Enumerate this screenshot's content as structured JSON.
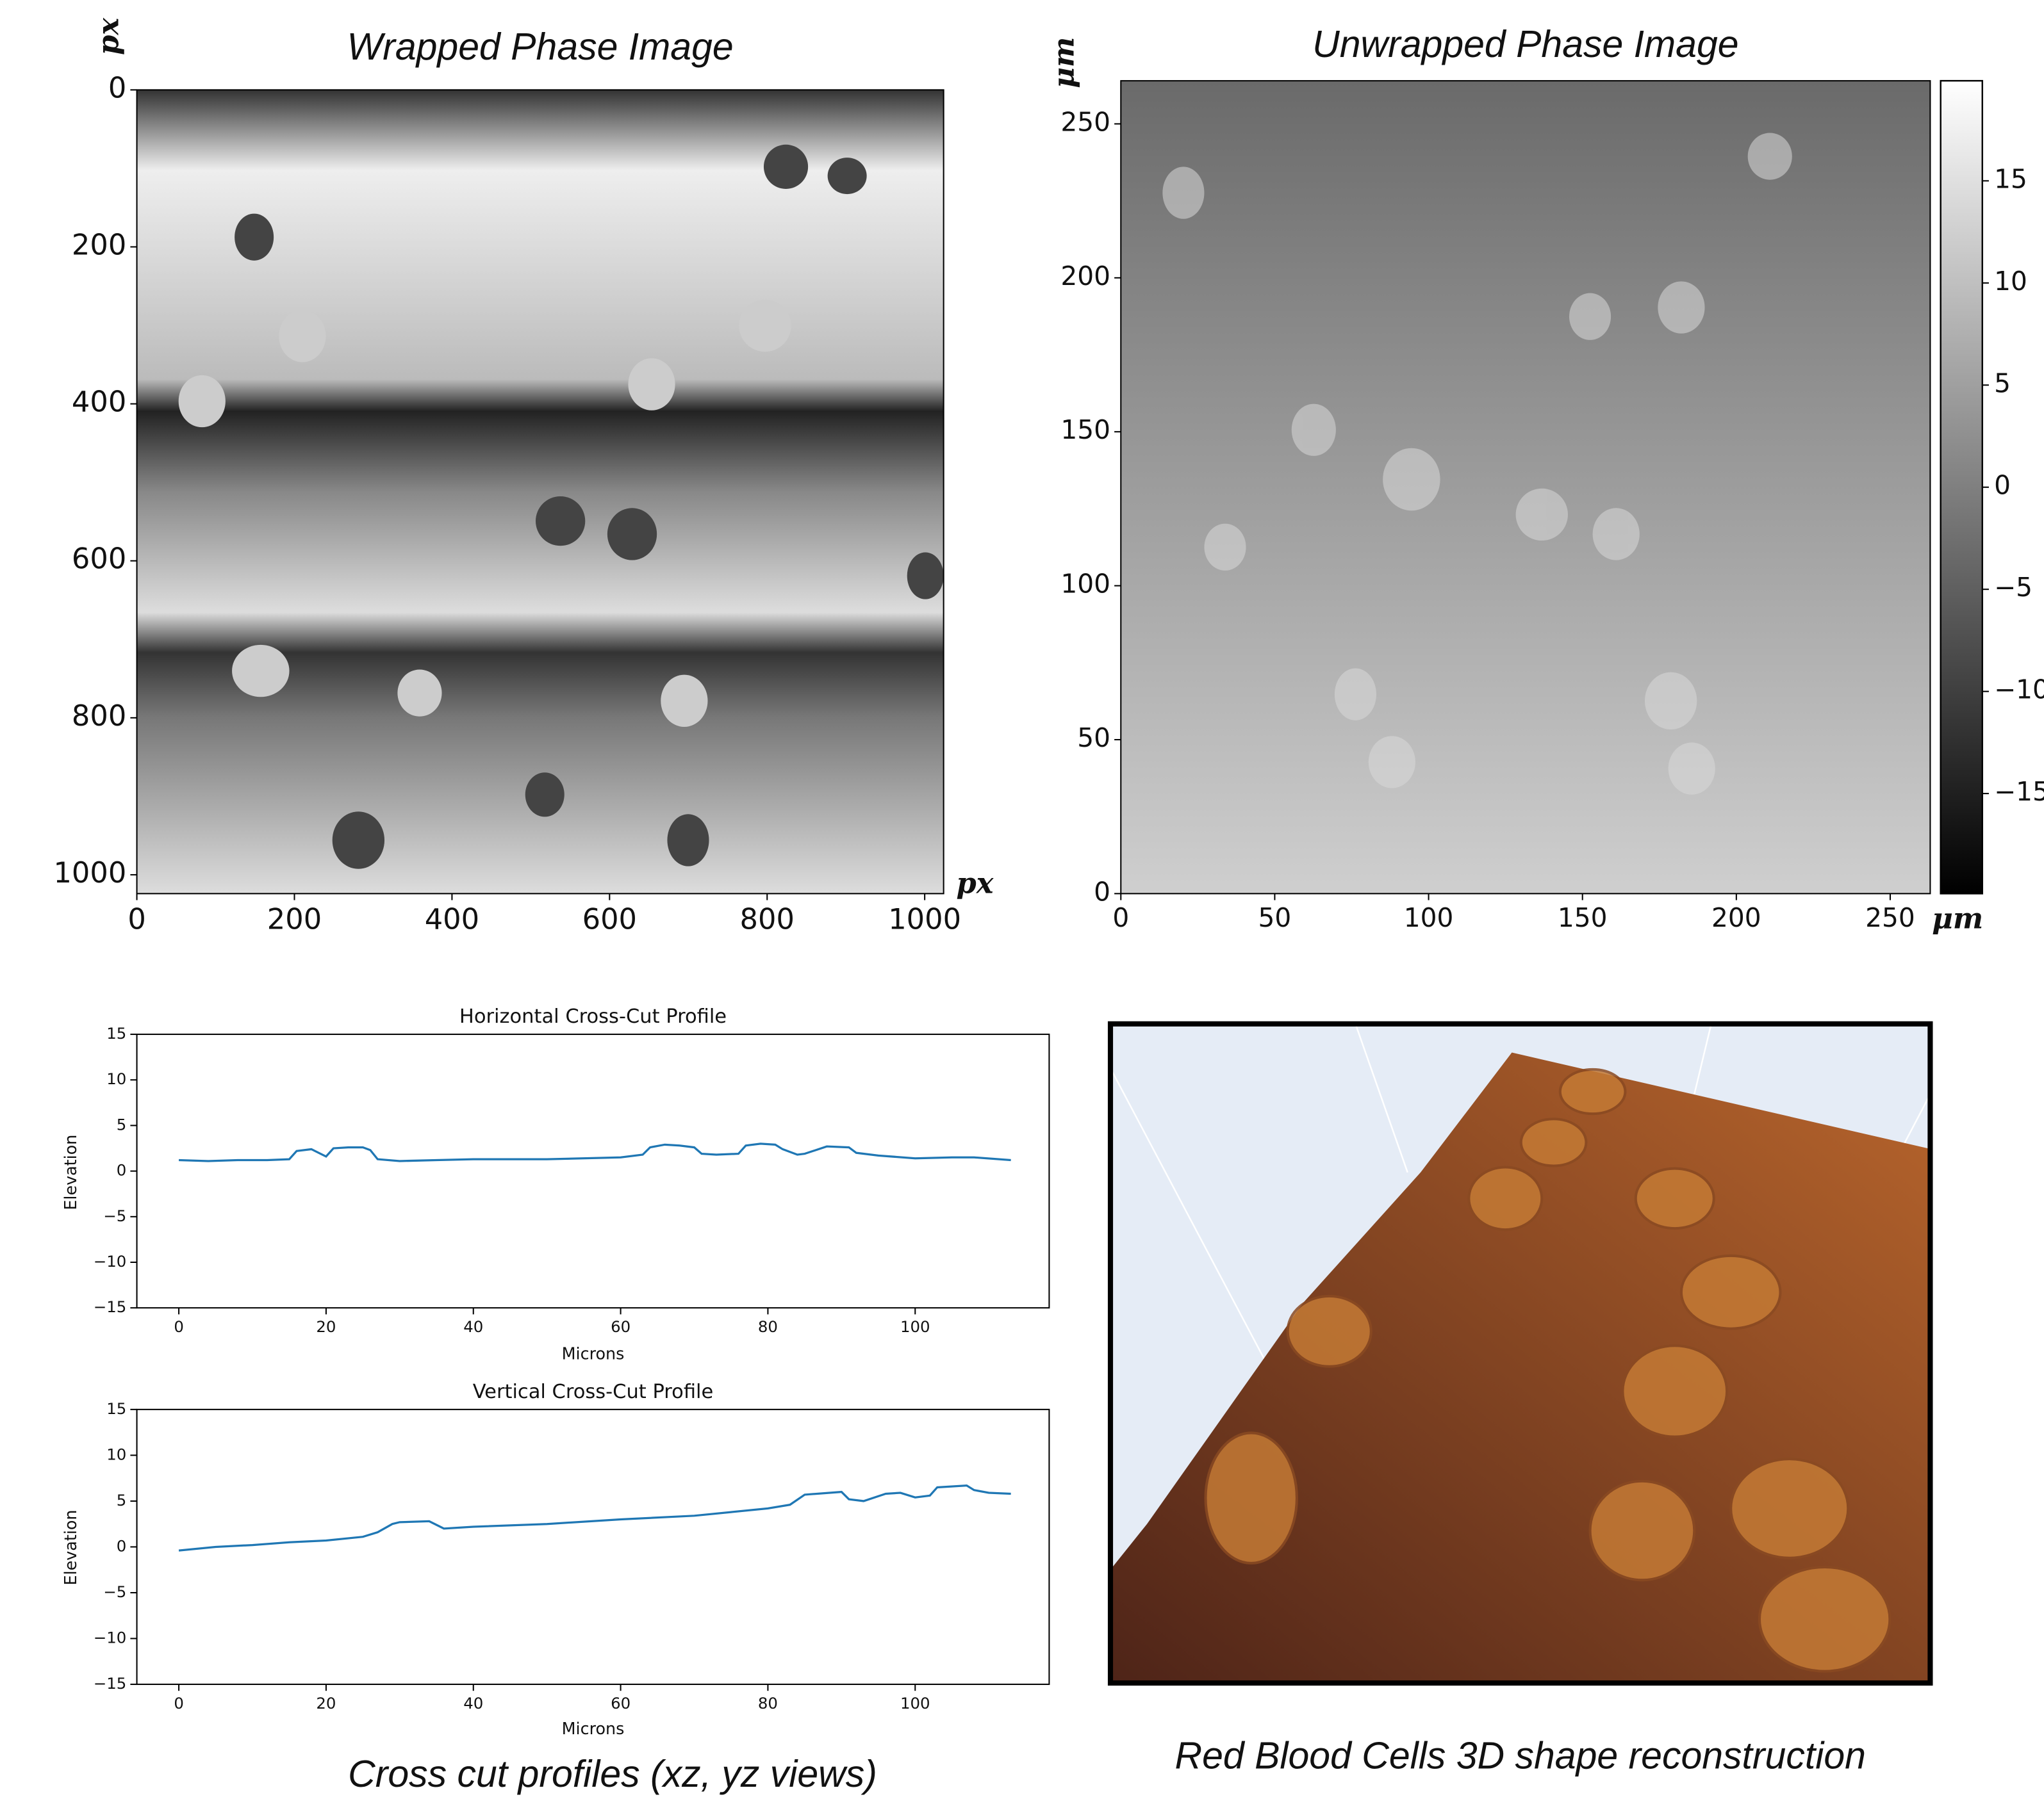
{
  "chart_data": [
    {
      "type": "image",
      "title": "Wrapped Phase Image",
      "xlabel": "px",
      "ylabel": "px",
      "cmap": "gray",
      "xlim": [
        0,
        1024
      ],
      "ylim": [
        1024,
        0
      ],
      "xticks": [
        0,
        200,
        400,
        600,
        800,
        1000
      ],
      "yticks": [
        0,
        200,
        400,
        600,
        800,
        1000
      ]
    },
    {
      "type": "image",
      "title": "Unwrapped Phase Image",
      "xlabel": "μm",
      "ylabel": "μm",
      "cmap": "gray",
      "xlim": [
        0,
        263
      ],
      "ylim": [
        0,
        264
      ],
      "xticks": [
        0,
        50,
        100,
        150,
        200,
        250
      ],
      "yticks": [
        0,
        50,
        100,
        150,
        200,
        250
      ],
      "clim": [
        -19.9,
        19.9
      ],
      "cticks": [
        15,
        10,
        5,
        0,
        {
          "value": -5,
          "label": "−5"
        },
        {
          "value": -10,
          "label": "−10"
        },
        {
          "value": -15,
          "label": "−15"
        }
      ]
    },
    {
      "type": "line",
      "title": "Horizontal Cross-Cut Profile",
      "xlabel": "Microns",
      "ylabel": "Elevation",
      "color": "#1f77b4",
      "x": [
        0,
        4,
        8,
        12,
        15,
        16,
        18,
        19,
        20,
        21,
        23,
        25,
        26,
        27,
        30,
        35,
        40,
        50,
        60,
        63,
        64,
        66,
        68,
        70,
        71,
        73,
        76,
        77,
        79,
        81,
        82,
        84,
        85,
        88,
        91,
        92,
        95,
        100,
        105,
        108,
        113
      ],
      "values": [
        1.2,
        1.1,
        1.2,
        1.2,
        1.3,
        2.2,
        2.4,
        2.0,
        1.6,
        2.5,
        2.6,
        2.6,
        2.3,
        1.3,
        1.1,
        1.2,
        1.3,
        1.3,
        1.5,
        1.8,
        2.6,
        2.9,
        2.8,
        2.6,
        1.9,
        1.8,
        1.9,
        2.8,
        3.0,
        2.9,
        2.4,
        1.8,
        1.9,
        2.7,
        2.6,
        2.0,
        1.7,
        1.4,
        1.5,
        1.5,
        1.2
      ],
      "xlim": [
        -5.7,
        118.2
      ],
      "ylim": [
        -15,
        15
      ],
      "xticks": [
        0,
        20,
        40,
        60,
        80,
        100
      ],
      "yticks": [
        {
          "value": -15,
          "label": "−15"
        },
        {
          "value": -10,
          "label": "−10"
        },
        {
          "value": -5,
          "label": "−5"
        },
        0,
        5,
        10,
        15
      ]
    },
    {
      "type": "line",
      "title": "Vertical Cross-Cut Profile",
      "xlabel": "Microns",
      "ylabel": "Elevation",
      "color": "#1f77b4",
      "x": [
        0,
        5,
        10,
        15,
        20,
        25,
        27,
        29,
        30,
        34,
        35,
        36,
        40,
        50,
        60,
        70,
        75,
        80,
        83,
        85,
        90,
        91,
        93,
        96,
        98,
        100,
        102,
        103,
        107,
        108,
        110,
        113
      ],
      "values": [
        -0.4,
        0,
        0.2,
        0.5,
        0.7,
        1.1,
        1.6,
        2.5,
        2.7,
        2.8,
        2.4,
        2.0,
        2.2,
        2.5,
        3.0,
        3.4,
        3.8,
        4.2,
        4.6,
        5.7,
        6.0,
        5.2,
        5.0,
        5.8,
        5.9,
        5.4,
        5.6,
        6.5,
        6.7,
        6.2,
        5.9,
        5.8
      ],
      "xlim": [
        -5.7,
        118.2
      ],
      "ylim": [
        -15,
        15
      ],
      "xticks": [
        0,
        20,
        40,
        60,
        80,
        100
      ],
      "yticks": [
        {
          "value": -15,
          "label": "−15"
        },
        {
          "value": -10,
          "label": "−10"
        },
        {
          "value": -5,
          "label": "−5"
        },
        0,
        5,
        10,
        15
      ]
    },
    {
      "type": "surface",
      "title": "Red Blood Cells 3D shape reconstruction"
    }
  ],
  "caption": "Cross cut profiles (xz, yz views)"
}
